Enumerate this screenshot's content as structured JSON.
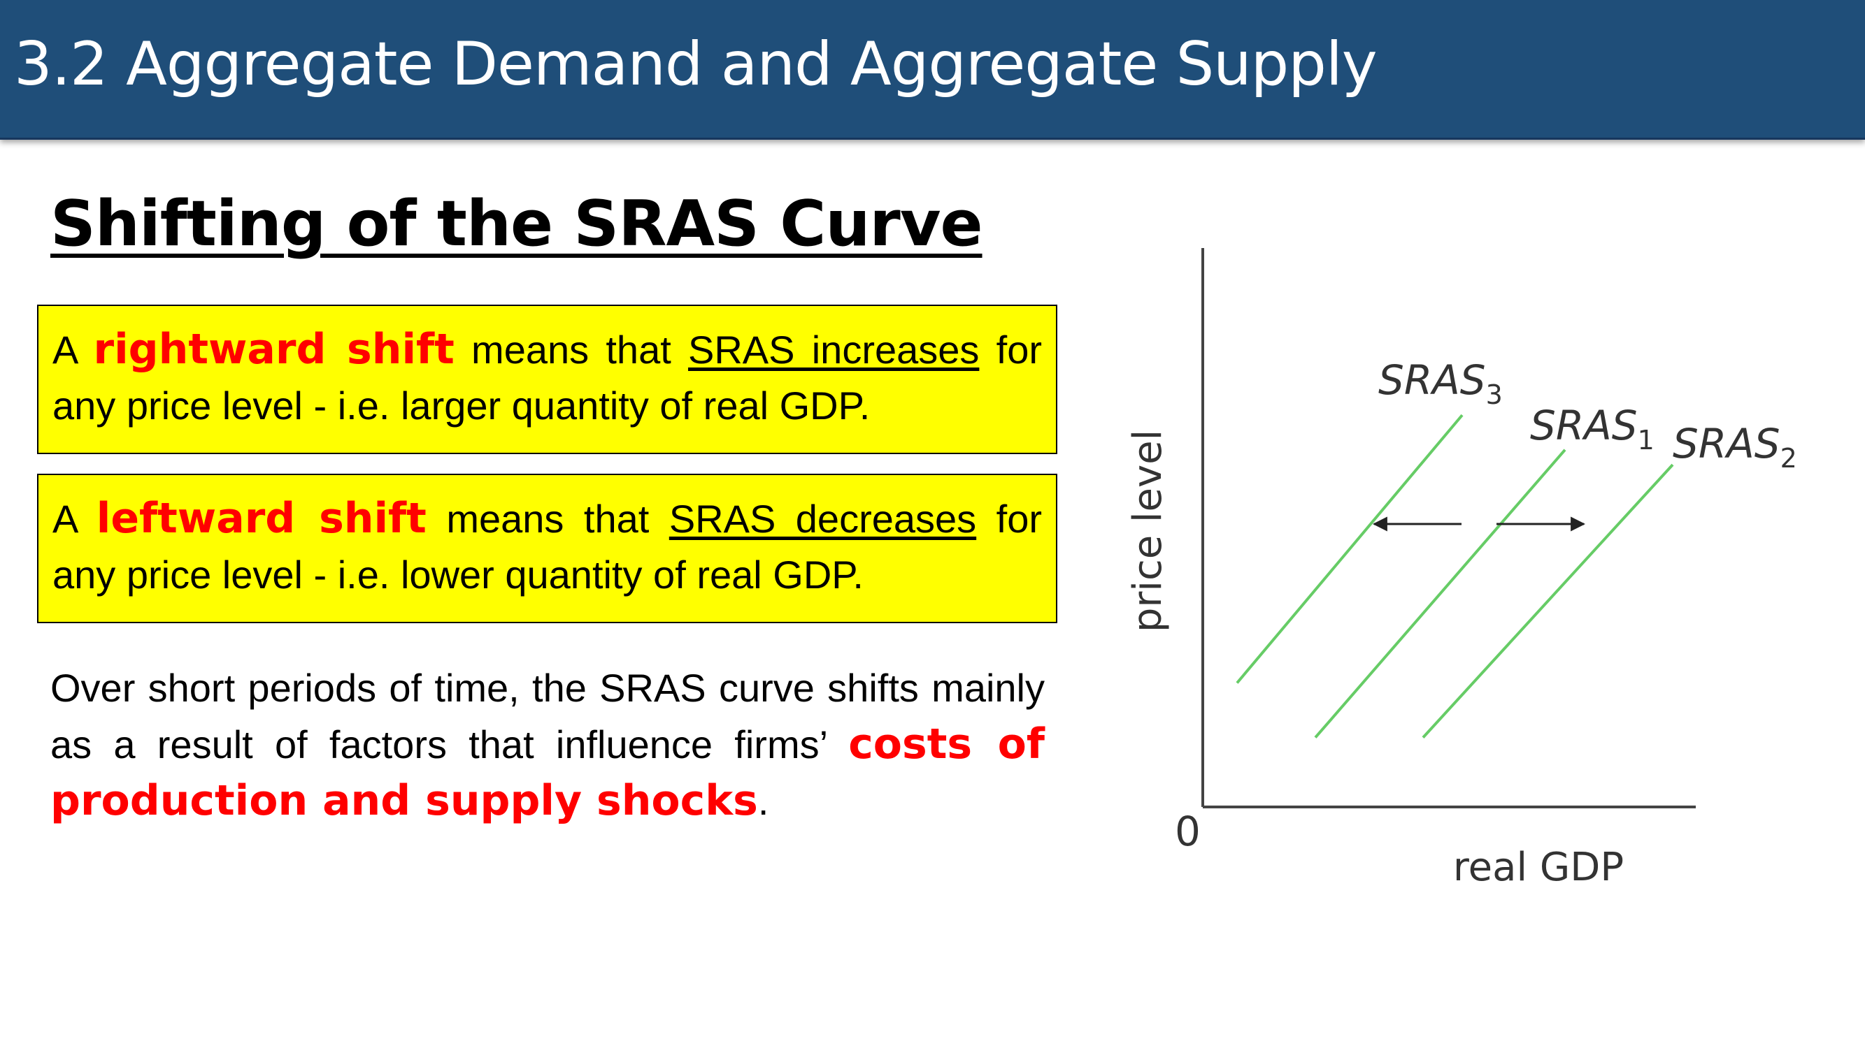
{
  "header": {
    "title": "3.2 Aggregate Demand and Aggregate Supply"
  },
  "main": {
    "heading": "Shifting of the SRAS Curve",
    "box_right": {
      "prefix": "A",
      "highlight": "rightward shift",
      "mid": "means that",
      "underlined": "SRAS increases",
      "suffix": "for any price level - i.e. larger quantity of real GDP."
    },
    "box_left": {
      "prefix": "A",
      "highlight": "leftward shift",
      "mid": "means that",
      "underlined": "SRAS decreases",
      "suffix": "for any price level - i.e. lower quantity of real GDP."
    },
    "paragraph": {
      "text": "Over short periods of time, the SRAS curve shifts mainly as a result of factors that influence firms’",
      "highlight": "costs of production and supply shocks",
      "end": "."
    }
  },
  "chart_data": {
    "type": "line",
    "xlabel": "real GDP",
    "ylabel": "price level",
    "origin_label": "0",
    "xlim": [
      0,
      10
    ],
    "ylim": [
      0,
      10
    ],
    "line_color": "#66cc66",
    "arrows": [
      "left",
      "right"
    ],
    "series": [
      {
        "name": "SRAS",
        "subscript": "3",
        "x": [
          0.7,
          5.3
        ],
        "y": [
          2.5,
          7.9
        ]
      },
      {
        "name": "SRAS",
        "subscript": "1",
        "x": [
          2.3,
          7.4
        ],
        "y": [
          1.4,
          7.2
        ]
      },
      {
        "name": "SRAS",
        "subscript": "2",
        "x": [
          4.5,
          9.6
        ],
        "y": [
          1.4,
          6.9
        ]
      }
    ]
  }
}
